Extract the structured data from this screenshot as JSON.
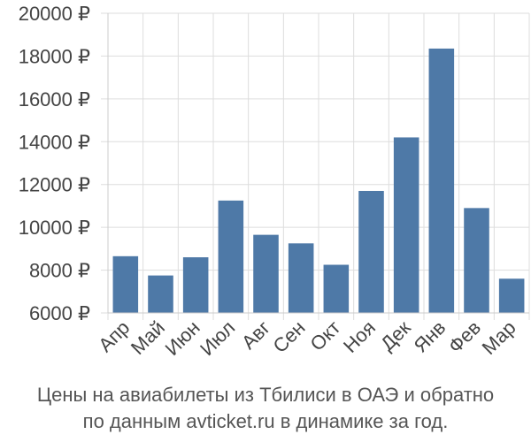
{
  "chart_data": {
    "type": "bar",
    "categories": [
      "Апр",
      "Май",
      "Июн",
      "Июл",
      "Авг",
      "Сен",
      "Окт",
      "Ноя",
      "Дек",
      "Янв",
      "Фев",
      "Мар"
    ],
    "values": [
      8650,
      7750,
      8600,
      11250,
      9650,
      9250,
      8250,
      11700,
      14200,
      18350,
      10900,
      7600
    ],
    "y_ticks": [
      6000,
      8000,
      10000,
      12000,
      14000,
      16000,
      18000,
      20000
    ],
    "y_tick_labels": [
      "6000 ₽",
      "8000 ₽",
      "10000 ₽",
      "12000 ₽",
      "14000 ₽",
      "16000 ₽",
      "18000 ₽",
      "20000 ₽"
    ],
    "ylim": [
      6000,
      20000
    ],
    "grid": true,
    "bar_color": "#4e79a7",
    "title": "",
    "xlabel": "",
    "ylabel": ""
  },
  "caption": {
    "line1": "Цены на авиабилеты из Тбилиси в ОАЭ и обратно",
    "line2": "по данным avticket.ru в динамике за год."
  }
}
